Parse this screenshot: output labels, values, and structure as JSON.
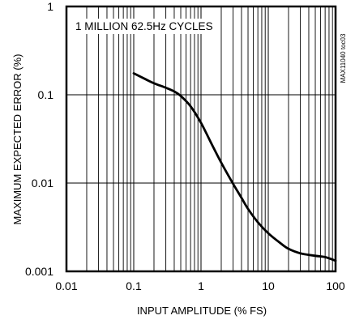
{
  "chart_data": {
    "type": "line",
    "title": "",
    "annotation": "1 MILLION 62.5Hz CYCLES",
    "figure_id": "MAX11040 toc03",
    "xlabel": "INPUT AMPLITUDE (% FS)",
    "ylabel": "MAXIMUM EXPECTED ERROR (%)",
    "x_scale": "log",
    "y_scale": "log",
    "xlim": [
      0.01,
      100
    ],
    "ylim": [
      0.001,
      1
    ],
    "grid": true,
    "x_ticks": [
      {
        "value": 0.01,
        "label": "0.01"
      },
      {
        "value": 0.1,
        "label": "0.1"
      },
      {
        "value": 1,
        "label": "1"
      },
      {
        "value": 10,
        "label": "10"
      },
      {
        "value": 100,
        "label": "100"
      }
    ],
    "y_ticks": [
      {
        "value": 0.001,
        "label": "0.001"
      },
      {
        "value": 0.01,
        "label": "0.01"
      },
      {
        "value": 0.1,
        "label": "0.1"
      },
      {
        "value": 1,
        "label": "1"
      }
    ],
    "series": [
      {
        "color": "#000000",
        "x": [
          0.1,
          0.15,
          0.2,
          0.3,
          0.4,
          0.5,
          0.7,
          1.0,
          1.5,
          2.0,
          3.0,
          4.0,
          5.0,
          7.0,
          10,
          15,
          20,
          30,
          50,
          70,
          100
        ],
        "y": [
          0.175,
          0.15,
          0.135,
          0.12,
          0.109,
          0.097,
          0.074,
          0.048,
          0.026,
          0.017,
          0.0098,
          0.0068,
          0.0051,
          0.0036,
          0.0027,
          0.0021,
          0.0018,
          0.0016,
          0.0015,
          0.00145,
          0.00132
        ]
      }
    ]
  }
}
